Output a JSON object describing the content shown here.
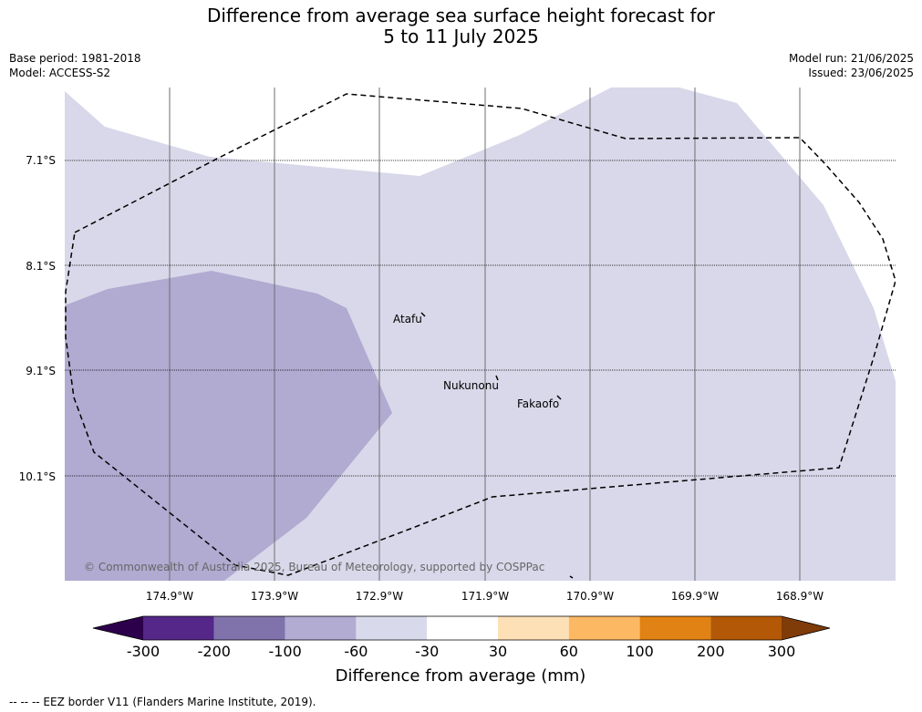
{
  "title": {
    "line1": "Difference from average sea surface height forecast for",
    "line2": "5 to 11 July 2025"
  },
  "meta": {
    "base_period": "Base period: 1981-2018",
    "model": "Model: ACCESS-S2",
    "model_run": "Model run: 21/06/2025",
    "issued": "Issued: 23/06/2025"
  },
  "map": {
    "latitude_labels": [
      "7.1°S",
      "8.1°S",
      "9.1°S",
      "10.1°S"
    ],
    "longitude_labels": [
      "174.9°W",
      "173.9°W",
      "172.9°W",
      "171.9°W",
      "170.9°W",
      "169.9°W",
      "168.9°W"
    ],
    "places": [
      {
        "name": "Atafu"
      },
      {
        "name": "Nukunonu"
      },
      {
        "name": "Fakaofo"
      }
    ],
    "copyright": "© Commonwealth of Australia 2025, Bureau of Meteorology, supported by COSPPac",
    "shading": {
      "minus30_to_minus60": "#d8d8ea",
      "minus60_to_minus100": "#b1aad1"
    }
  },
  "colorbar": {
    "ticks": [
      "-300",
      "-200",
      "-100",
      "-60",
      "-30",
      "30",
      "60",
      "100",
      "200",
      "300"
    ],
    "colors": [
      "#2d004b",
      "#542788",
      "#8073ac",
      "#b2abd2",
      "#d8daeb",
      "#ffffff",
      "#fee0b6",
      "#fdb863",
      "#e08214",
      "#b35806",
      "#7f3b08"
    ],
    "label": "Difference from average (mm)"
  },
  "footer_note": "--  --  -- EEZ border V11 (Flanders Marine Institute, 2019)."
}
